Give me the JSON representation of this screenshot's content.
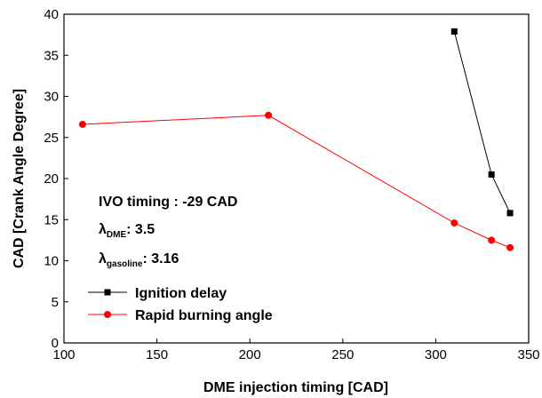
{
  "chart_data": {
    "type": "line",
    "xlabel": "DME injection timing  [CAD]",
    "ylabel": "CAD  [Crank Angle Degree]",
    "xlim": [
      100,
      350
    ],
    "ylim": [
      0,
      40
    ],
    "x_ticks": [
      100,
      150,
      200,
      250,
      300,
      350
    ],
    "y_ticks": [
      0,
      5,
      10,
      15,
      20,
      25,
      30,
      35,
      40
    ],
    "grid": false,
    "legend_position": "lower-left",
    "series": [
      {
        "name": "Ignition delay",
        "color": "#000000",
        "marker": "square",
        "x": [
          310,
          330,
          340
        ],
        "y": [
          37.9,
          20.5,
          15.8
        ]
      },
      {
        "name": "Rapid burning angle",
        "color": "#ff0000",
        "marker": "circle",
        "x": [
          110,
          210,
          310,
          330,
          340
        ],
        "y": [
          26.6,
          27.7,
          14.6,
          12.5,
          11.6
        ]
      }
    ],
    "annotations": {
      "ivo": "IVO timing : -29 CAD",
      "lambda_dme_symbol": "λ",
      "lambda_dme_sub": "DME",
      "lambda_dme_value": ": 3.5",
      "lambda_gas_symbol": "λ",
      "lambda_gas_sub": "gasoline",
      "lambda_gas_value": ": 3.16"
    }
  }
}
